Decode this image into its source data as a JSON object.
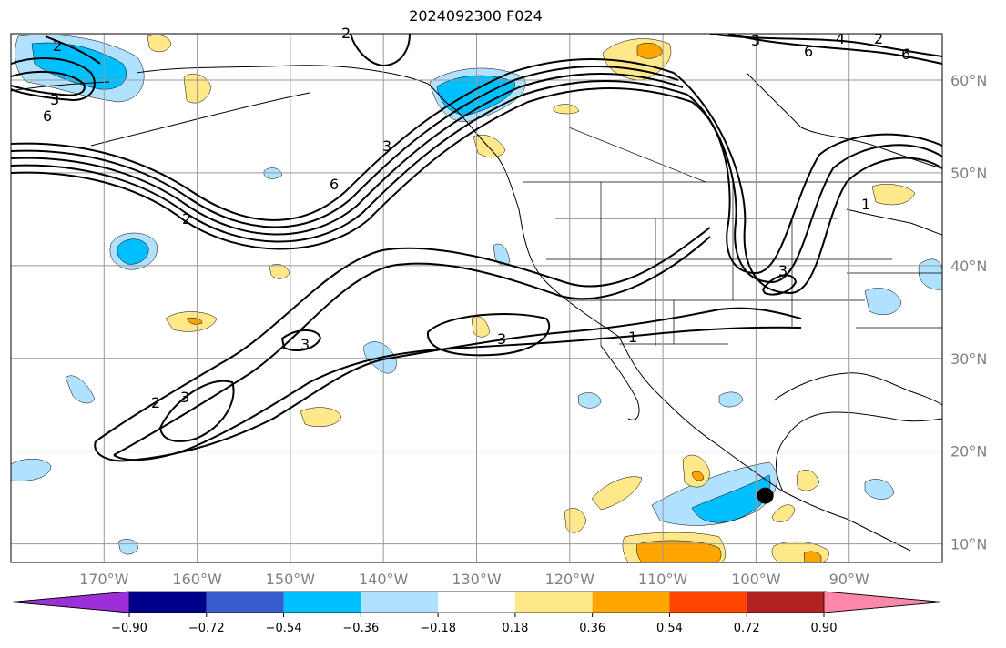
{
  "title": "2024092300 F024",
  "map": {
    "lon_min": -180,
    "lon_max": -80,
    "lat_min": 8,
    "lat_max": 65,
    "lat_gridlines": [
      10,
      20,
      30,
      40,
      50,
      60
    ],
    "lon_gridlines": [
      -170,
      -160,
      -150,
      -140,
      -130,
      -120,
      -110,
      -100,
      -90
    ],
    "lat_labels": [
      "10°N",
      "20°N",
      "30°N",
      "40°N",
      "50°N",
      "60°N"
    ],
    "lon_labels": [
      "170°W",
      "160°W",
      "150°W",
      "140°W",
      "130°W",
      "120°W",
      "110°W",
      "100°W",
      "90°W"
    ],
    "marker": {
      "lon": -99,
      "lat": 15.2,
      "color": "#000000"
    },
    "contour_labels": [
      "2",
      "3",
      "6",
      "2",
      "6",
      "3",
      "2",
      "2",
      "3",
      "3",
      "3",
      "1",
      "3",
      "2",
      "4",
      "6",
      "6",
      "1",
      "3"
    ]
  },
  "colorbar": {
    "colors": [
      "#9b30d9",
      "#00008b",
      "#3a5bcc",
      "#00bfff",
      "#b0e2ff",
      "#ffffff",
      "#ffe88a",
      "#ffa500",
      "#ff4500",
      "#b22222",
      "#ff88aa",
      "#ff88aa"
    ],
    "tick_labels": [
      "−0.90",
      "−0.72",
      "−0.54",
      "−0.36",
      "−0.18",
      "0.18",
      "0.36",
      "0.54",
      "0.72",
      "0.90"
    ]
  }
}
